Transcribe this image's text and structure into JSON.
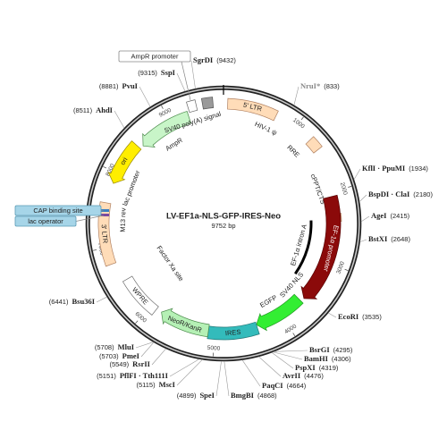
{
  "map": {
    "title": "LV-EF1a-NLS-GFP-IRES-Neo",
    "size": "9752 bp",
    "ticks": [
      1000,
      2000,
      3000,
      4000,
      5000,
      6000,
      7000,
      8000,
      9000
    ],
    "features": [
      "5' LTR",
      "HIV-1 ψ",
      "RRE",
      "cPPT/CTS",
      "EF-1α promoter",
      "EF-1α intron A",
      "SV40 NLS",
      "EGFP",
      "IRES",
      "NeoR/KanR",
      "WPRE",
      "Factor Xa site",
      "3' LTR",
      "M13 rev",
      "lac promoter",
      "ori",
      "AmpR",
      "SV40 poly(A) signal"
    ],
    "boxes": [
      "AmpR promoter",
      "CAP binding site",
      "lac operator"
    ],
    "sites": [
      {
        "name": "SgrDI",
        "position": "(9432)"
      },
      {
        "name": "NruI*",
        "position": "(833)"
      },
      {
        "name": "KflI · PpuMI",
        "position": "(1934)"
      },
      {
        "name": "BspDI · ClaI",
        "position": "(2180)"
      },
      {
        "name": "AgeI",
        "position": "(2415)"
      },
      {
        "name": "BstXI",
        "position": "(2648)"
      },
      {
        "name": "EcoRI",
        "position": "(3535)"
      },
      {
        "name": "BsrGI",
        "position": "(4295)"
      },
      {
        "name": "BamHI",
        "position": "(4306)"
      },
      {
        "name": "PspXI",
        "position": "(4319)"
      },
      {
        "name": "AvrII",
        "position": "(4476)"
      },
      {
        "name": "PaqCI",
        "position": "(4664)"
      },
      {
        "name": "BmgBI",
        "position": "(4868)"
      },
      {
        "name": "SpeI",
        "position": "(4899)"
      },
      {
        "name": "MscI",
        "position": "(5115)"
      },
      {
        "name": "PflFI · Tth111I",
        "position": "(5151)"
      },
      {
        "name": "RsrII",
        "position": "(5549)"
      },
      {
        "name": "PmeI",
        "position": "(5703)"
      },
      {
        "name": "MluI",
        "position": "(5708)"
      },
      {
        "name": "Bsu36I",
        "position": "(6441)"
      },
      {
        "name": "AhdI",
        "position": "(8511)"
      },
      {
        "name": "PvuI",
        "position": "(8881)"
      },
      {
        "name": "SspI",
        "position": "(9315)"
      }
    ]
  }
}
